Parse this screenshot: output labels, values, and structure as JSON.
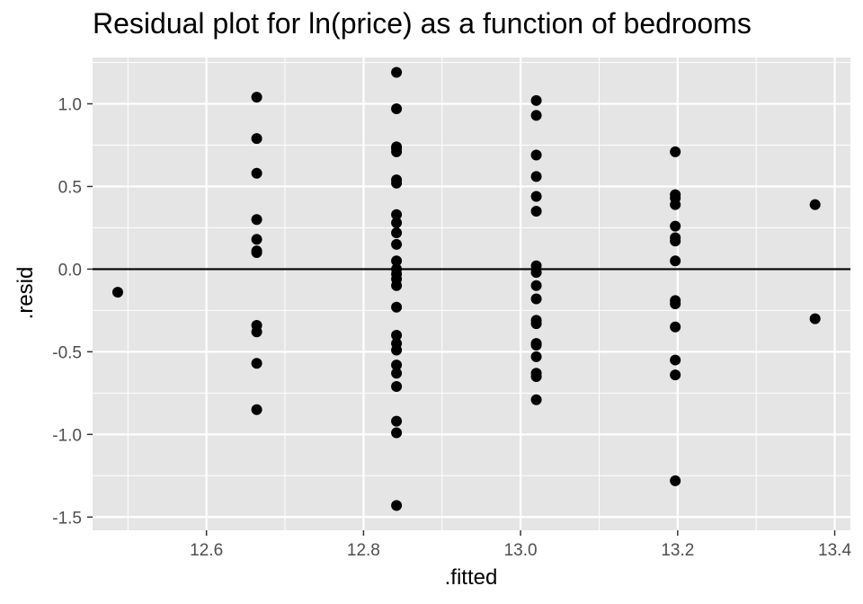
{
  "chart_data": {
    "type": "scatter",
    "title": "Residual plot for ln(price) as a function of bedrooms",
    "xlabel": ".fitted",
    "ylabel": ".resid",
    "xlim": [
      12.455,
      13.42
    ],
    "ylim": [
      -1.58,
      1.28
    ],
    "x_ticks": [
      12.6,
      12.8,
      13.0,
      13.2,
      13.4
    ],
    "x_tick_labels": [
      "12.6",
      "12.8",
      "13.0",
      "13.2",
      "13.4"
    ],
    "y_ticks": [
      -1.5,
      -1.0,
      -0.5,
      0.0,
      0.5,
      1.0
    ],
    "y_tick_labels": [
      "-1.5",
      "-1.0",
      "-0.5",
      "0.0",
      "0.5",
      "1.0"
    ],
    "reference_line_y": 0,
    "grid": true,
    "colors": {
      "panel": "#e5e5e5",
      "grid": "#ffffff",
      "points": "#000000"
    },
    "points": [
      {
        "x": 12.487,
        "y": -0.14
      },
      {
        "x": 12.664,
        "y": 1.04
      },
      {
        "x": 12.664,
        "y": 0.79
      },
      {
        "x": 12.664,
        "y": 0.58
      },
      {
        "x": 12.664,
        "y": 0.3
      },
      {
        "x": 12.664,
        "y": 0.18
      },
      {
        "x": 12.664,
        "y": 0.11
      },
      {
        "x": 12.664,
        "y": 0.1
      },
      {
        "x": 12.664,
        "y": -0.34
      },
      {
        "x": 12.664,
        "y": -0.38
      },
      {
        "x": 12.664,
        "y": -0.57
      },
      {
        "x": 12.664,
        "y": -0.85
      },
      {
        "x": 12.842,
        "y": 1.19
      },
      {
        "x": 12.842,
        "y": 0.97
      },
      {
        "x": 12.842,
        "y": 0.74
      },
      {
        "x": 12.842,
        "y": 0.73
      },
      {
        "x": 12.842,
        "y": 0.71
      },
      {
        "x": 12.842,
        "y": 0.54
      },
      {
        "x": 12.842,
        "y": 0.52
      },
      {
        "x": 12.842,
        "y": 0.33
      },
      {
        "x": 12.842,
        "y": 0.28
      },
      {
        "x": 12.842,
        "y": 0.22
      },
      {
        "x": 12.842,
        "y": 0.15
      },
      {
        "x": 12.842,
        "y": 0.05
      },
      {
        "x": 12.842,
        "y": 0.0
      },
      {
        "x": 12.842,
        "y": -0.03
      },
      {
        "x": 12.842,
        "y": -0.06
      },
      {
        "x": 12.842,
        "y": -0.1
      },
      {
        "x": 12.842,
        "y": -0.23
      },
      {
        "x": 12.842,
        "y": -0.4
      },
      {
        "x": 12.842,
        "y": -0.45
      },
      {
        "x": 12.842,
        "y": -0.49
      },
      {
        "x": 12.842,
        "y": -0.58
      },
      {
        "x": 12.842,
        "y": -0.63
      },
      {
        "x": 12.842,
        "y": -0.71
      },
      {
        "x": 12.842,
        "y": -0.92
      },
      {
        "x": 12.842,
        "y": -0.99
      },
      {
        "x": 12.842,
        "y": -1.43
      },
      {
        "x": 13.02,
        "y": 1.02
      },
      {
        "x": 13.02,
        "y": 0.93
      },
      {
        "x": 13.02,
        "y": 0.69
      },
      {
        "x": 13.02,
        "y": 0.56
      },
      {
        "x": 13.02,
        "y": 0.44
      },
      {
        "x": 13.02,
        "y": 0.35
      },
      {
        "x": 13.02,
        "y": 0.02
      },
      {
        "x": 13.02,
        "y": -0.02
      },
      {
        "x": 13.02,
        "y": -0.1
      },
      {
        "x": 13.02,
        "y": -0.18
      },
      {
        "x": 13.02,
        "y": -0.31
      },
      {
        "x": 13.02,
        "y": -0.33
      },
      {
        "x": 13.02,
        "y": -0.45
      },
      {
        "x": 13.02,
        "y": -0.46
      },
      {
        "x": 13.02,
        "y": -0.53
      },
      {
        "x": 13.02,
        "y": -0.63
      },
      {
        "x": 13.02,
        "y": -0.65
      },
      {
        "x": 13.02,
        "y": -0.79
      },
      {
        "x": 13.197,
        "y": 0.71
      },
      {
        "x": 13.197,
        "y": 0.45
      },
      {
        "x": 13.197,
        "y": 0.43
      },
      {
        "x": 13.197,
        "y": 0.39
      },
      {
        "x": 13.197,
        "y": 0.26
      },
      {
        "x": 13.197,
        "y": 0.19
      },
      {
        "x": 13.197,
        "y": 0.17
      },
      {
        "x": 13.197,
        "y": 0.05
      },
      {
        "x": 13.197,
        "y": -0.19
      },
      {
        "x": 13.197,
        "y": -0.21
      },
      {
        "x": 13.197,
        "y": -0.35
      },
      {
        "x": 13.197,
        "y": -0.55
      },
      {
        "x": 13.197,
        "y": -0.64
      },
      {
        "x": 13.197,
        "y": -1.28
      },
      {
        "x": 13.375,
        "y": 0.39
      },
      {
        "x": 13.375,
        "y": -0.3
      }
    ]
  }
}
